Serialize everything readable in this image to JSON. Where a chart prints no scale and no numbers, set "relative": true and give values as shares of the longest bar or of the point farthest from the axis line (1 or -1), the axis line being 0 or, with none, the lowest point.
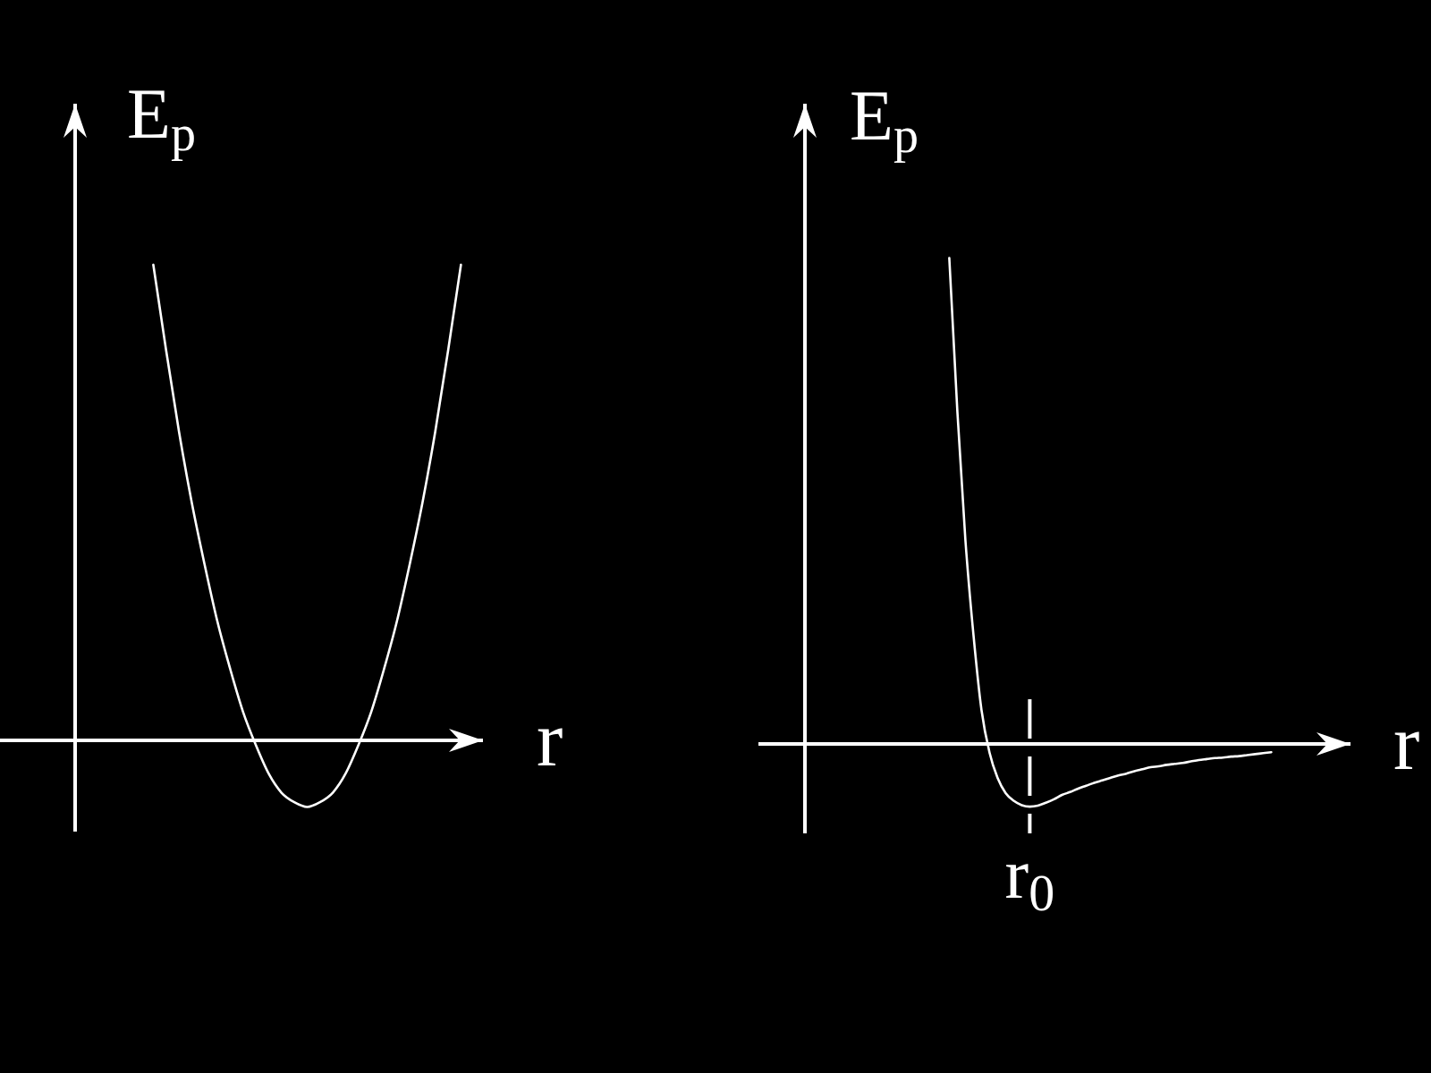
{
  "chart_data": [
    {
      "type": "line",
      "relative": true,
      "xlabel": "r",
      "ylabel": "E$_{p}$",
      "categories": [
        null,
        null,
        null,
        null,
        null,
        null,
        null,
        null,
        null,
        null,
        null,
        null,
        null,
        null,
        null,
        null,
        null,
        null,
        null,
        null,
        null,
        null,
        null,
        null,
        null
      ],
      "series": [
        {
          "color": "#ffffff",
          "values": [
            1,
            0.82,
            0.65,
            0.5,
            0.37,
            0.25,
            0.15,
            0.06,
            -0.01,
            -0.07,
            -0.11,
            -0.13,
            -0.14,
            -0.13,
            -0.11,
            -0.07,
            -0.01,
            0.06,
            0.15,
            0.25,
            0.37,
            0.5,
            0.65,
            0.82,
            1
          ]
        }
      ]
    },
    {
      "type": "line",
      "relative": true,
      "xlabel": "r",
      "ylabel": "E$_{p}$",
      "categories": [
        null,
        null,
        null,
        null,
        null,
        null,
        null,
        null,
        null,
        null,
        null,
        null,
        null,
        null,
        null,
        null,
        null,
        null,
        null,
        null,
        null,
        null,
        null,
        null,
        null,
        null,
        null,
        null,
        null,
        null,
        null,
        null,
        null,
        null,
        null,
        null,
        null,
        null,
        null,
        null,
        null
      ],
      "series": [
        {
          "color": "#ffffff",
          "values": [
            1,
            0.685,
            0.42,
            0.225,
            0.07,
            -0.018,
            -0.07,
            -0.101,
            -0.117,
            -0.126,
            -0.129,
            -0.127,
            -0.121,
            -0.114,
            -0.105,
            -0.099,
            -0.092,
            -0.086,
            -0.08,
            -0.075,
            -0.07,
            -0.065,
            -0.061,
            -0.056,
            -0.052,
            -0.048,
            -0.046,
            -0.043,
            -0.041,
            -0.039,
            -0.036,
            -0.033,
            -0.031,
            -0.029,
            -0.028,
            -0.026,
            -0.025,
            -0.023,
            -0.021,
            -0.019,
            -0.017
          ]
        }
      ],
      "annotations": [
        "r$_{0}$"
      ]
    }
  ]
}
